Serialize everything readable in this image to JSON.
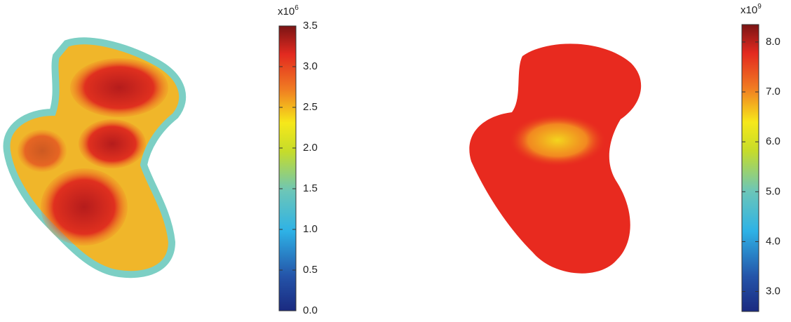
{
  "panels": [
    {
      "colorbar": {
        "multiplier": "x10",
        "exponent": "6",
        "lim": [
          0,
          3.5
        ],
        "ticks": [
          {
            "value": 0,
            "label": "0.0"
          },
          {
            "value": 0.5,
            "label": "0.5"
          },
          {
            "value": 1,
            "label": "1.0"
          },
          {
            "value": 1.5,
            "label": "1.5"
          },
          {
            "value": 2,
            "label": "2.0"
          },
          {
            "value": 2.5,
            "label": "2.5"
          },
          {
            "value": 3,
            "label": "3.0"
          },
          {
            "value": 3.5,
            "label": "3.5"
          }
        ]
      }
    },
    {
      "colorbar": {
        "multiplier": "x10",
        "exponent": "9",
        "lim": [
          2.6,
          8.35
        ],
        "ticks": [
          {
            "value": 3,
            "label": "3.0"
          },
          {
            "value": 4,
            "label": "4.0"
          },
          {
            "value": 5,
            "label": "5.0"
          },
          {
            "value": 6,
            "label": "6.0"
          },
          {
            "value": 7,
            "label": "7.0"
          },
          {
            "value": 8,
            "label": "8.0"
          }
        ]
      }
    }
  ]
}
